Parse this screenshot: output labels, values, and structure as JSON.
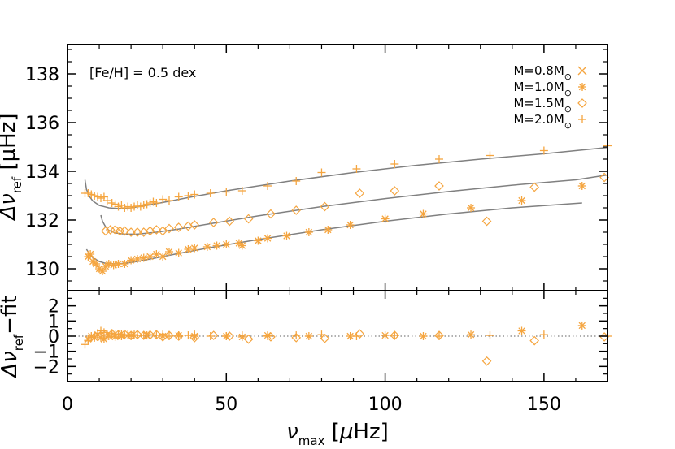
{
  "chart_data": {
    "type": "scatter",
    "annotation": "[Fe/H] = 0.5 dex",
    "colors": {
      "marker": "#F5A53F",
      "fit_line": "#808080",
      "zero_line": "#808080",
      "axes": "#000000"
    },
    "x_axis": {
      "label_symbol": "ν",
      "label_sub": "max",
      "label_unit_open": "[",
      "label_unit_mu": "μ",
      "label_unit_rest": "Hz]",
      "lim": [
        0,
        170
      ],
      "ticks": [
        0,
        50,
        100,
        150
      ],
      "tick_labels": [
        "0",
        "50",
        "100",
        "150"
      ]
    },
    "top_panel": {
      "ylabel_symbol": "Δν",
      "ylabel_sub": "ref",
      "ylabel_unit": "[μHz]",
      "ylim": [
        129.1,
        139.2
      ],
      "ticks": [
        130,
        132,
        134,
        136,
        138
      ],
      "tick_labels": [
        "130",
        "132",
        "134",
        "136",
        "138"
      ]
    },
    "bottom_panel": {
      "ylabel_symbol": "Δν",
      "ylabel_sub": "ref",
      "ylabel_suffix": "−fit",
      "ylim": [
        -3.0,
        3.0
      ],
      "ticks": [
        -2,
        -1,
        0,
        1,
        2
      ],
      "tick_labels": [
        "−2",
        "−1",
        "0",
        "1",
        "2"
      ]
    },
    "legend": {
      "position": "top-right",
      "entries": [
        {
          "prefix": "M=0.8M",
          "symbol": "⊙",
          "marker": "x"
        },
        {
          "prefix": "M=1.0M",
          "symbol": "⊙",
          "marker": "asterisk"
        },
        {
          "prefix": "M=1.5M",
          "symbol": "⊙",
          "marker": "diamond"
        },
        {
          "prefix": "M=2.0M",
          "symbol": "⊙",
          "marker": "plus"
        }
      ]
    },
    "series": [
      {
        "marker": "asterisk",
        "points": [
          [
            6.5,
            130.5
          ],
          [
            7.2,
            130.6
          ],
          [
            8,
            130.3
          ],
          [
            9,
            130.2
          ],
          [
            10,
            130.0
          ],
          [
            11,
            129.9
          ],
          [
            12,
            130.1
          ],
          [
            13,
            130.2
          ],
          [
            14.5,
            130.15
          ],
          [
            16,
            130.2
          ],
          [
            18,
            130.2
          ],
          [
            20,
            130.35
          ],
          [
            22,
            130.4
          ],
          [
            24,
            130.45
          ],
          [
            26,
            130.5
          ],
          [
            28,
            130.6
          ],
          [
            30,
            130.5
          ],
          [
            32,
            130.7
          ],
          [
            35,
            130.65
          ],
          [
            38,
            130.8
          ],
          [
            40,
            130.85
          ],
          [
            44,
            130.9
          ],
          [
            47,
            130.95
          ],
          [
            50,
            131.0
          ],
          [
            54,
            131.05
          ],
          [
            55,
            130.95
          ],
          [
            60,
            131.15
          ],
          [
            63,
            131.25
          ],
          [
            69,
            131.35
          ],
          [
            76,
            131.5
          ],
          [
            82,
            131.6
          ],
          [
            89,
            131.8
          ],
          [
            100,
            132.05
          ],
          [
            112,
            132.25
          ],
          [
            127,
            132.5
          ],
          [
            143,
            132.8
          ],
          [
            162,
            133.4
          ]
        ]
      },
      {
        "marker": "diamond",
        "points": [
          [
            12,
            131.55
          ],
          [
            13.5,
            131.6
          ],
          [
            15,
            131.6
          ],
          [
            16.5,
            131.55
          ],
          [
            18,
            131.55
          ],
          [
            20,
            131.5
          ],
          [
            22,
            131.5
          ],
          [
            24,
            131.5
          ],
          [
            26,
            131.55
          ],
          [
            28,
            131.6
          ],
          [
            30,
            131.55
          ],
          [
            32,
            131.65
          ],
          [
            35,
            131.7
          ],
          [
            38,
            131.75
          ],
          [
            40,
            131.8
          ],
          [
            46,
            131.9
          ],
          [
            51,
            131.95
          ],
          [
            57,
            132.05
          ],
          [
            64,
            132.25
          ],
          [
            72,
            132.4
          ],
          [
            81,
            132.55
          ],
          [
            92,
            133.1
          ],
          [
            103,
            133.2
          ],
          [
            117,
            133.4
          ],
          [
            132,
            131.95
          ],
          [
            147,
            133.35
          ],
          [
            169,
            133.75
          ]
        ]
      },
      {
        "marker": "plus",
        "points": [
          [
            5.5,
            133.1
          ],
          [
            6.5,
            133.1
          ],
          [
            7.5,
            133.05
          ],
          [
            8.5,
            133.0
          ],
          [
            9.5,
            132.95
          ],
          [
            10.5,
            132.9
          ],
          [
            11.5,
            132.95
          ],
          [
            12.5,
            132.8
          ],
          [
            14,
            132.7
          ],
          [
            15,
            132.65
          ],
          [
            16,
            132.55
          ],
          [
            17,
            132.6
          ],
          [
            18,
            132.5
          ],
          [
            19,
            132.55
          ],
          [
            20,
            132.5
          ],
          [
            21,
            132.55
          ],
          [
            22,
            132.6
          ],
          [
            23,
            132.55
          ],
          [
            24,
            132.6
          ],
          [
            25,
            132.65
          ],
          [
            26,
            132.7
          ],
          [
            27,
            132.75
          ],
          [
            28,
            132.7
          ],
          [
            30,
            132.85
          ],
          [
            32,
            132.8
          ],
          [
            35,
            132.95
          ],
          [
            38,
            133.0
          ],
          [
            40,
            133.05
          ],
          [
            45,
            133.1
          ],
          [
            50,
            133.15
          ],
          [
            55,
            133.2
          ],
          [
            63,
            133.4
          ],
          [
            72,
            133.6
          ],
          [
            80,
            133.95
          ],
          [
            91,
            134.1
          ],
          [
            103,
            134.3
          ],
          [
            117,
            134.5
          ],
          [
            133,
            134.65
          ],
          [
            150,
            134.85
          ],
          [
            170,
            135.05
          ]
        ]
      }
    ],
    "fit_curves": [
      {
        "points": [
          [
            6,
            130.8
          ],
          [
            7,
            130.6
          ],
          [
            8,
            130.45
          ],
          [
            10,
            130.3
          ],
          [
            12,
            130.22
          ],
          [
            15,
            130.2
          ],
          [
            18,
            130.22
          ],
          [
            22,
            130.3
          ],
          [
            28,
            130.45
          ],
          [
            35,
            130.63
          ],
          [
            45,
            130.87
          ],
          [
            60,
            131.2
          ],
          [
            80,
            131.6
          ],
          [
            100,
            131.95
          ],
          [
            120,
            132.25
          ],
          [
            140,
            132.5
          ],
          [
            162,
            132.7
          ]
        ]
      },
      {
        "points": [
          [
            10.5,
            132.2
          ],
          [
            11,
            131.95
          ],
          [
            12,
            131.72
          ],
          [
            13,
            131.58
          ],
          [
            15,
            131.47
          ],
          [
            18,
            131.42
          ],
          [
            22,
            131.42
          ],
          [
            28,
            131.5
          ],
          [
            35,
            131.63
          ],
          [
            45,
            131.85
          ],
          [
            60,
            132.17
          ],
          [
            80,
            132.55
          ],
          [
            100,
            132.88
          ],
          [
            120,
            133.17
          ],
          [
            140,
            133.43
          ],
          [
            160,
            133.65
          ],
          [
            170,
            133.85
          ]
        ]
      },
      {
        "points": [
          [
            5.5,
            133.65
          ],
          [
            6,
            133.25
          ],
          [
            7,
            132.95
          ],
          [
            8,
            132.78
          ],
          [
            10,
            132.6
          ],
          [
            13,
            132.5
          ],
          [
            16,
            132.47
          ],
          [
            20,
            132.5
          ],
          [
            25,
            132.6
          ],
          [
            30,
            132.72
          ],
          [
            40,
            132.97
          ],
          [
            50,
            133.2
          ],
          [
            70,
            133.6
          ],
          [
            90,
            133.95
          ],
          [
            110,
            134.25
          ],
          [
            130,
            134.5
          ],
          [
            150,
            134.72
          ],
          [
            170,
            134.98
          ]
        ]
      }
    ],
    "residuals": [
      {
        "marker": "asterisk",
        "points": [
          [
            6.5,
            -0.2
          ],
          [
            7.5,
            0.0
          ],
          [
            8.5,
            -0.1
          ],
          [
            9.5,
            0.1
          ],
          [
            10.5,
            -0.1
          ],
          [
            11.5,
            -0.2
          ],
          [
            13,
            0.0
          ],
          [
            15,
            -0.05
          ],
          [
            17,
            0.0
          ],
          [
            20,
            0.05
          ],
          [
            25,
            0.05
          ],
          [
            30,
            0.0
          ],
          [
            35,
            0.05
          ],
          [
            40,
            0.0
          ],
          [
            50,
            0.0
          ],
          [
            55,
            -0.05
          ],
          [
            63,
            0.05
          ],
          [
            76,
            0.0
          ],
          [
            89,
            0.0
          ],
          [
            100,
            0.05
          ],
          [
            112,
            0.0
          ],
          [
            127,
            0.1
          ],
          [
            143,
            0.35
          ],
          [
            162,
            0.7
          ]
        ]
      },
      {
        "marker": "diamond",
        "points": [
          [
            12,
            0.1
          ],
          [
            14,
            0.15
          ],
          [
            16,
            0.1
          ],
          [
            18,
            0.12
          ],
          [
            20,
            0.05
          ],
          [
            22,
            0.1
          ],
          [
            24,
            0.05
          ],
          [
            26,
            0.08
          ],
          [
            28,
            0.1
          ],
          [
            30,
            -0.05
          ],
          [
            32,
            0.05
          ],
          [
            35,
            0.0
          ],
          [
            40,
            -0.1
          ],
          [
            46,
            0.05
          ],
          [
            51,
            0.0
          ],
          [
            57,
            -0.2
          ],
          [
            64,
            -0.05
          ],
          [
            72,
            -0.1
          ],
          [
            81,
            -0.15
          ],
          [
            92,
            0.15
          ],
          [
            103,
            0.05
          ],
          [
            117,
            0.05
          ],
          [
            132,
            -1.65
          ],
          [
            147,
            -0.3
          ],
          [
            169,
            -0.05
          ]
        ]
      },
      {
        "marker": "plus",
        "points": [
          [
            5.5,
            -0.55
          ],
          [
            6.5,
            -0.3
          ],
          [
            7.5,
            -0.1
          ],
          [
            8.5,
            0.0
          ],
          [
            9.5,
            0.2
          ],
          [
            10.5,
            0.35
          ],
          [
            11.5,
            0.25
          ],
          [
            12.5,
            0.1
          ],
          [
            14,
            0.2
          ],
          [
            15,
            0.15
          ],
          [
            16,
            0.1
          ],
          [
            17,
            0.15
          ],
          [
            18,
            0.05
          ],
          [
            19,
            0.1
          ],
          [
            20,
            0.0
          ],
          [
            21,
            0.1
          ],
          [
            22,
            0.05
          ],
          [
            24,
            0.05
          ],
          [
            26,
            0.1
          ],
          [
            28,
            0.05
          ],
          [
            30,
            0.1
          ],
          [
            32,
            0.0
          ],
          [
            35,
            0.05
          ],
          [
            38,
            0.05
          ],
          [
            40,
            0.1
          ],
          [
            45,
            0.0
          ],
          [
            50,
            0.0
          ],
          [
            55,
            0.05
          ],
          [
            63,
            0.0
          ],
          [
            72,
            0.05
          ],
          [
            80,
            0.1
          ],
          [
            91,
            0.0
          ],
          [
            103,
            0.05
          ],
          [
            117,
            0.0
          ],
          [
            133,
            0.05
          ],
          [
            150,
            0.1
          ],
          [
            170,
            0.0
          ]
        ]
      }
    ]
  }
}
